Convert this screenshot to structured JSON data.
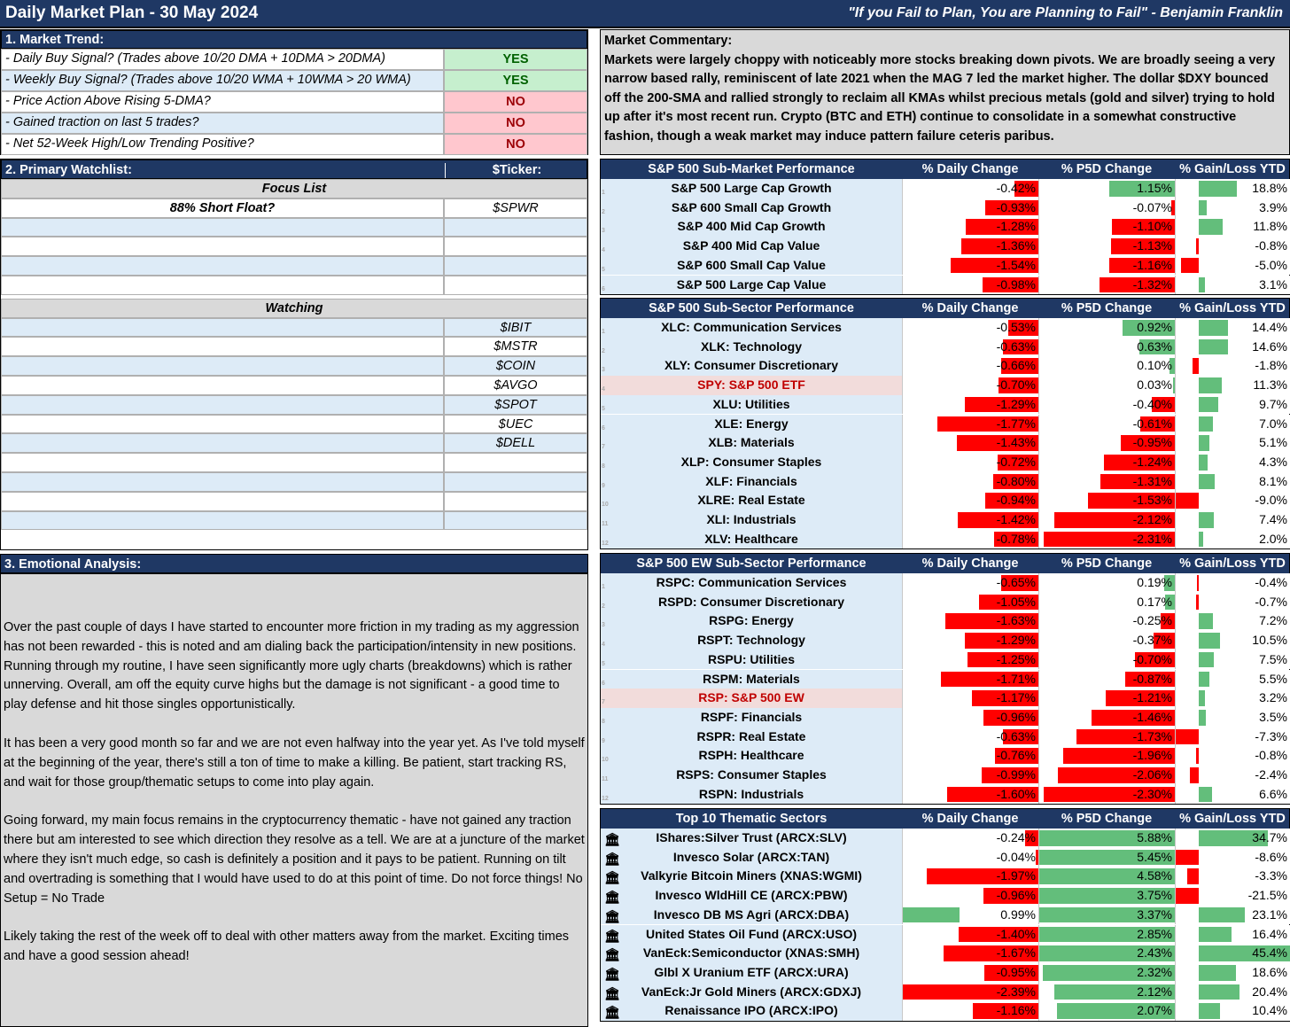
{
  "title": "Daily Market Plan - 30 May 2024",
  "quote": "\"If you Fail to Plan, You are Planning to Fail\" - Benjamin Franklin",
  "trend": {
    "header": "1. Market Trend:",
    "rows": [
      {
        "label": "- Daily Buy Signal? (Trades above 10/20 DMA + 10DMA > 20DMA)",
        "value": "YES"
      },
      {
        "label": "- Weekly Buy Signal? (Trades above 10/20 WMA + 10WMA > 20 WMA)",
        "value": "YES"
      },
      {
        "label": "- Price Action Above Rising 5-DMA?",
        "value": "NO"
      },
      {
        "label": "- Gained traction on last 5 trades?",
        "value": "NO"
      },
      {
        "label": "- Net 52-Week High/Low Trending Positive?",
        "value": "NO"
      }
    ]
  },
  "commentary": {
    "label": "Market Commentary:",
    "text": "Markets were largely choppy with noticeably more stocks breaking down pivots. We are broadly seeing a very narrow based rally, reminiscent of late 2021 when the MAG 7 led the market higher. The dollar $DXY bounced off the 200-SMA and rallied strongly to reclaim all KMAs whilst precious metals (gold and silver) trying to hold up after it's most recent run. Crypto (BTC and ETH) continue to consolidate in a somewhat constructive fashion, though a weak market may induce pattern failure ceteris paribus."
  },
  "watchlist": {
    "header": "2. Primary Watchlist:",
    "ticker_header": "$Ticker:",
    "focus_label": "Focus List",
    "focus": [
      {
        "name": "88% Short Float?",
        "ticker": "$SPWR"
      },
      {
        "name": "",
        "ticker": ""
      },
      {
        "name": "",
        "ticker": ""
      },
      {
        "name": "",
        "ticker": ""
      },
      {
        "name": "",
        "ticker": ""
      }
    ],
    "watching_label": "Watching",
    "watching": [
      {
        "name": "",
        "ticker": "$IBIT"
      },
      {
        "name": "",
        "ticker": "$MSTR"
      },
      {
        "name": "",
        "ticker": "$COIN"
      },
      {
        "name": "",
        "ticker": "$AVGO"
      },
      {
        "name": "",
        "ticker": "$SPOT"
      },
      {
        "name": "",
        "ticker": "$UEC"
      },
      {
        "name": "",
        "ticker": "$DELL"
      },
      {
        "name": "",
        "ticker": ""
      },
      {
        "name": "",
        "ticker": ""
      },
      {
        "name": "",
        "ticker": ""
      },
      {
        "name": "",
        "ticker": ""
      }
    ]
  },
  "emotional": {
    "header": "3. Emotional Analysis:",
    "paragraphs": [
      "Over the past couple of days I have started to encounter more friction in my trading as my aggression has not been rewarded - this is noted and am dialing back the participation/intensity in new positions. Running through my routine, I have seen significantly more ugly charts (breakdowns) which is rather unnerving. Overall, am off the equity curve highs but the damage is not significant - a good time to play defense and hit those singles opportunistically.",
      "It has been a very good month so far and we are not even halfway into the year yet. As I've told myself at the beginning of the year, there's still a ton of time to make a killing. Be patient, start tracking RS, and wait for those group/thematic setups to come into play again.",
      "Going forward, my main focus remains in the cryptocurrency thematic - have not gained any traction there but am interested to see which direction they resolve as a tell. We are at a juncture of the market where they isn't much edge, so cash is definitely a position and it pays to be patient. Running on tilt and overtrading is something that I would have used to do at this point of time. Do not force things! No Setup = No Trade",
      "Likely taking the rest of the week off to deal with other matters away from the market. Exciting times and have a good session ahead!"
    ]
  },
  "columns": {
    "daily": "% Daily Change",
    "p5d": "% P5D Change",
    "ytd": "% Gain/Loss YTD"
  },
  "colors": {
    "negative": "#ff0000",
    "positive": "#63be7b",
    "header": "#1f3864",
    "highlight_text": "#c00000"
  },
  "tables": [
    {
      "id": "submarket",
      "title": "S&P 500 Sub-Market Performance",
      "rows": [
        {
          "name": "S&P 500 Large Cap Growth",
          "d": "-0.42%",
          "p": "1.15%",
          "y": "18.8%",
          "idx": "1"
        },
        {
          "name": "S&P 600 Small Cap Growth",
          "d": "-0.93%",
          "p": "-0.07%",
          "y": "3.9%",
          "idx": "2"
        },
        {
          "name": "S&P 400 Mid Cap Growth",
          "d": "-1.28%",
          "p": "-1.10%",
          "y": "11.8%",
          "idx": "3"
        },
        {
          "name": "S&P 400 Mid Cap Value",
          "d": "-1.36%",
          "p": "-1.13%",
          "y": "-0.8%",
          "idx": "4"
        },
        {
          "name": "S&P 600 Small Cap Value",
          "d": "-1.54%",
          "p": "-1.16%",
          "y": "-5.0%",
          "idx": "5"
        },
        {
          "name": "S&P 500 Large Cap Value",
          "d": "-0.98%",
          "p": "-1.32%",
          "y": "3.1%",
          "idx": "6"
        }
      ]
    },
    {
      "id": "subsector",
      "title": "S&P 500 Sub-Sector Performance",
      "rows": [
        {
          "name": "XLC: Communication Services",
          "d": "-0.53%",
          "p": "0.92%",
          "y": "14.4%",
          "idx": "1"
        },
        {
          "name": "XLK: Technology",
          "d": "-0.63%",
          "p": "0.63%",
          "y": "14.6%",
          "idx": "2"
        },
        {
          "name": "XLY: Consumer Discretionary",
          "d": "-0.66%",
          "p": "0.10%",
          "y": "-1.8%",
          "idx": "3"
        },
        {
          "name": "SPY: S&P 500 ETF",
          "d": "-0.70%",
          "p": "0.03%",
          "y": "11.3%",
          "idx": "4",
          "hl": true
        },
        {
          "name": "XLU: Utilities",
          "d": "-1.29%",
          "p": "-0.40%",
          "y": "9.7%",
          "idx": "5"
        },
        {
          "name": "XLE: Energy",
          "d": "-1.77%",
          "p": "-0.61%",
          "y": "7.0%",
          "idx": "6"
        },
        {
          "name": "XLB: Materials",
          "d": "-1.43%",
          "p": "-0.95%",
          "y": "5.1%",
          "idx": "7"
        },
        {
          "name": "XLP: Consumer Staples",
          "d": "-0.72%",
          "p": "-1.24%",
          "y": "4.3%",
          "idx": "8"
        },
        {
          "name": "XLF: Financials",
          "d": "-0.80%",
          "p": "-1.31%",
          "y": "8.1%",
          "idx": "9"
        },
        {
          "name": "XLRE: Real Estate",
          "d": "-0.94%",
          "p": "-1.53%",
          "y": "-9.0%",
          "idx": "10"
        },
        {
          "name": "XLI: Industrials",
          "d": "-1.42%",
          "p": "-2.12%",
          "y": "7.4%",
          "idx": "11"
        },
        {
          "name": "XLV: Healthcare",
          "d": "-0.78%",
          "p": "-2.31%",
          "y": "2.0%",
          "idx": "12"
        }
      ]
    },
    {
      "id": "ewsubsector",
      "title": "S&P 500 EW Sub-Sector Performance",
      "rows": [
        {
          "name": "RSPC: Communication Services",
          "d": "-0.65%",
          "p": "0.19%",
          "y": "-0.4%",
          "idx": "1"
        },
        {
          "name": "RSPD: Consumer Discretionary",
          "d": "-1.05%",
          "p": "0.17%",
          "y": "-0.7%",
          "idx": "2"
        },
        {
          "name": "RSPG: Energy",
          "d": "-1.63%",
          "p": "-0.25%",
          "y": "7.2%",
          "idx": "3"
        },
        {
          "name": "RSPT: Technology",
          "d": "-1.29%",
          "p": "-0.37%",
          "y": "10.5%",
          "idx": "4"
        },
        {
          "name": "RSPU: Utilities",
          "d": "-1.25%",
          "p": "-0.70%",
          "y": "7.5%",
          "idx": "5"
        },
        {
          "name": "RSPM: Materials",
          "d": "-1.71%",
          "p": "-0.87%",
          "y": "5.5%",
          "idx": "6"
        },
        {
          "name": "RSP: S&P 500 EW",
          "d": "-1.17%",
          "p": "-1.21%",
          "y": "3.2%",
          "idx": "7",
          "hl": true
        },
        {
          "name": "RSPF: Financials",
          "d": "-0.96%",
          "p": "-1.46%",
          "y": "3.5%",
          "idx": "8"
        },
        {
          "name": "RSPR: Real Estate",
          "d": "-0.63%",
          "p": "-1.73%",
          "y": "-7.3%",
          "idx": "9"
        },
        {
          "name": "RSPH: Healthcare",
          "d": "-0.76%",
          "p": "-1.96%",
          "y": "-0.8%",
          "idx": "10"
        },
        {
          "name": "RSPS: Consumer Staples",
          "d": "-0.99%",
          "p": "-2.06%",
          "y": "-2.4%",
          "idx": "11"
        },
        {
          "name": "RSPN: Industrials",
          "d": "-1.60%",
          "p": "-2.30%",
          "y": "6.6%",
          "idx": "12"
        }
      ]
    },
    {
      "id": "thematic",
      "title": "Top 10 Thematic Sectors",
      "icons": true,
      "rows": [
        {
          "name": "IShares:Silver Trust (ARCX:SLV)",
          "d": "-0.24%",
          "p": "5.88%",
          "y": "34.7%"
        },
        {
          "name": "Invesco Solar (ARCX:TAN)",
          "d": "-0.04%",
          "p": "5.45%",
          "y": "-8.6%"
        },
        {
          "name": "Valkyrie Bitcoin Miners (XNAS:WGMI)",
          "d": "-1.97%",
          "p": "4.58%",
          "y": "-3.3%"
        },
        {
          "name": "Invesco WldHill CE (ARCX:PBW)",
          "d": "-0.96%",
          "p": "3.75%",
          "y": "-21.5%"
        },
        {
          "name": "Invesco DB MS Agri (ARCX:DBA)",
          "d": "0.99%",
          "p": "3.37%",
          "y": "23.1%"
        },
        {
          "name": "United States Oil Fund (ARCX:USO)",
          "d": "-1.40%",
          "p": "2.85%",
          "y": "16.4%"
        },
        {
          "name": "VanEck:Semiconductor (XNAS:SMH)",
          "d": "-1.67%",
          "p": "2.43%",
          "y": "45.4%"
        },
        {
          "name": "Glbl X Uranium ETF (ARCX:URA)",
          "d": "-0.95%",
          "p": "2.32%",
          "y": "18.6%"
        },
        {
          "name": "VanEck:Jr Gold Miners (ARCX:GDXJ)",
          "d": "-2.39%",
          "p": "2.12%",
          "y": "20.4%"
        },
        {
          "name": "Renaissance IPO (ARCX:IPO)",
          "d": "-1.16%",
          "p": "2.07%",
          "y": "10.4%"
        }
      ]
    }
  ]
}
